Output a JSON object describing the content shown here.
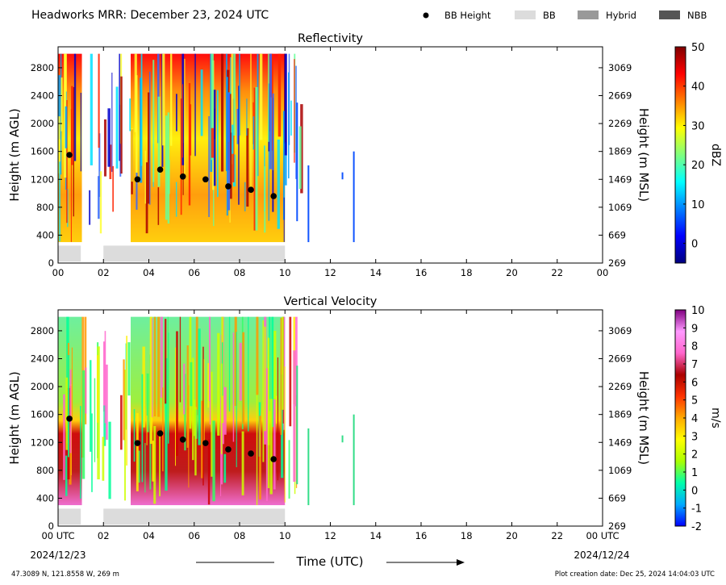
{
  "header": {
    "title": "Headworks MRR:  December 23, 2024 UTC",
    "legend": [
      {
        "label": "BB Height",
        "kind": "dot",
        "color": "#000000"
      },
      {
        "label": "BB",
        "kind": "bar",
        "color": "#dcdcdc"
      },
      {
        "label": "Hybrid",
        "kind": "bar",
        "color": "#999999"
      },
      {
        "label": "NBB",
        "kind": "bar",
        "color": "#555555"
      }
    ]
  },
  "footer": {
    "location": "47.3089 N, 121.8558 W, 269 m",
    "created": "Plot creation date: Dec 25, 2024 14:04:03 UTC",
    "xlabel": "Time (UTC)",
    "start_date": "2024/12/23",
    "end_date": "2024/12/24"
  },
  "colors": {
    "bb_bar": "#dcdcdc",
    "bb_dot": "#000000"
  },
  "chart_data": [
    {
      "type": "heatmap",
      "title": "Reflectivity",
      "ylabel": "Height (m AGL)",
      "ylabel_right": "Height (m MSL)",
      "xlim": [
        0,
        24
      ],
      "ylim": [
        0,
        3100
      ],
      "x_ticks": [
        "00",
        "02",
        "04",
        "06",
        "08",
        "10",
        "12",
        "14",
        "16",
        "18",
        "20",
        "22",
        "00"
      ],
      "y_ticks": [
        0,
        400,
        800,
        1200,
        1600,
        2000,
        2400,
        2800
      ],
      "y_ticks_right": [
        269,
        669,
        1069,
        1469,
        1869,
        2269,
        2669,
        3069
      ],
      "colorbar": {
        "label": "dBZ",
        "min": -5,
        "max": 50,
        "ticks": [
          0,
          10,
          20,
          30,
          40,
          50
        ],
        "stops": [
          "#00007f",
          "#0000ff",
          "#007fff",
          "#00ffff",
          "#7fff7f",
          "#ffff00",
          "#ff7f00",
          "#ff0000",
          "#7f0000"
        ]
      },
      "bb_height": [
        {
          "x": 0.5,
          "y": 1550
        },
        {
          "x": 3.5,
          "y": 1200
        },
        {
          "x": 4.5,
          "y": 1340
        },
        {
          "x": 5.5,
          "y": 1240
        },
        {
          "x": 6.5,
          "y": 1200
        },
        {
          "x": 7.5,
          "y": 1100
        },
        {
          "x": 8.5,
          "y": 1050
        },
        {
          "x": 9.5,
          "y": 960
        }
      ],
      "bb_periods": [
        [
          0,
          1
        ],
        [
          2,
          10
        ]
      ]
    },
    {
      "type": "heatmap",
      "title": "Vertical Velocity",
      "ylabel": "Height (m AGL)",
      "ylabel_right": "Height (m MSL)",
      "xlim": [
        0,
        24
      ],
      "ylim": [
        0,
        3100
      ],
      "x_ticks": [
        "00 UTC",
        "02",
        "04",
        "06",
        "08",
        "10",
        "12",
        "14",
        "16",
        "18",
        "20",
        "22",
        "00 UTC"
      ],
      "y_ticks": [
        0,
        400,
        800,
        1200,
        1600,
        2000,
        2400,
        2800
      ],
      "y_ticks_right": [
        269,
        669,
        1069,
        1469,
        1869,
        2269,
        2669,
        3069
      ],
      "colorbar": {
        "label": "m/s",
        "min": -2,
        "max": 10,
        "ticks": [
          -2,
          -1,
          0,
          1,
          2,
          3,
          4,
          5,
          6,
          7,
          8,
          9,
          10
        ],
        "stops": [
          "#0000ff",
          "#00aaff",
          "#00ffaa",
          "#aaff00",
          "#ffff00",
          "#ffaa00",
          "#ff3300",
          "#aa0000",
          "#ff66cc",
          "#ff99ff",
          "#800080"
        ]
      },
      "bb_height": [
        {
          "x": 0.5,
          "y": 1540
        },
        {
          "x": 3.5,
          "y": 1190
        },
        {
          "x": 4.5,
          "y": 1330
        },
        {
          "x": 5.5,
          "y": 1240
        },
        {
          "x": 6.5,
          "y": 1190
        },
        {
          "x": 7.5,
          "y": 1100
        },
        {
          "x": 8.5,
          "y": 1040
        },
        {
          "x": 9.5,
          "y": 960
        }
      ],
      "bb_periods": [
        [
          0,
          1
        ],
        [
          2,
          10
        ]
      ]
    }
  ]
}
